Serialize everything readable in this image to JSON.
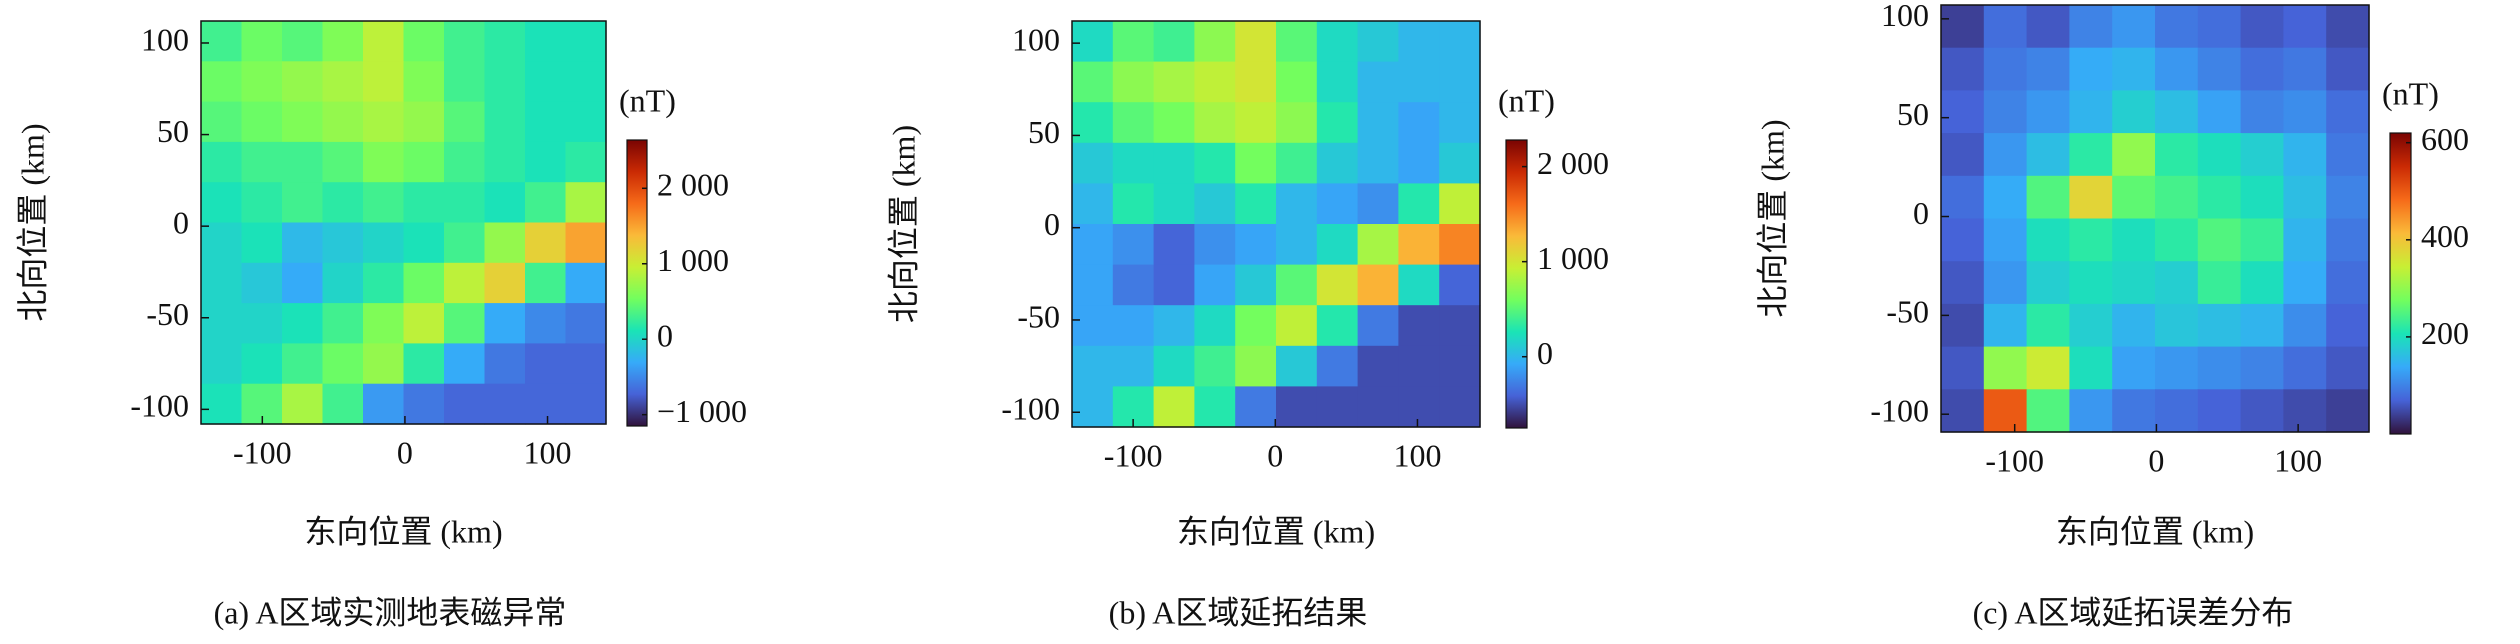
{
  "chart_data": [
    {
      "type": "heatmap",
      "title": "(a) A区域实测地表磁异常",
      "xlabel": "东向位置 (km)",
      "ylabel": "北向位置 (km)",
      "xlim": [
        -143,
        141
      ],
      "ylim": [
        -108,
        112
      ],
      "xticks": [
        -100,
        0,
        100
      ],
      "yticks": [
        -100,
        -50,
        0,
        50,
        100
      ],
      "colormap": [
        "#30123b",
        "#4662d7",
        "#36aaf9",
        "#1ae4b6",
        "#72fe5e",
        "#c8ef34",
        "#faba39",
        "#f66b19",
        "#ca2a04",
        "#7a0403"
      ],
      "colorbar_label": "(nT)",
      "clim": [
        -1150,
        2640
      ],
      "cticks": [
        {
          "value": -1000,
          "label": "−1 000"
        },
        0,
        {
          "value": 1000,
          "label": "1 000"
        },
        {
          "value": 2000,
          "label": "2 000"
        }
      ],
      "z": [
        [
          300,
          500,
          400,
          600,
          900,
          500,
          300,
          200,
          100,
          100
        ],
        [
          500,
          600,
          700,
          800,
          900,
          600,
          300,
          200,
          100,
          100
        ],
        [
          400,
          500,
          600,
          700,
          800,
          700,
          400,
          200,
          100,
          100
        ],
        [
          200,
          300,
          300,
          400,
          600,
          500,
          300,
          200,
          100,
          200
        ],
        [
          100,
          200,
          300,
          200,
          300,
          200,
          200,
          100,
          300,
          800
        ],
        [
          0,
          100,
          -200,
          -100,
          0,
          100,
          300,
          700,
          1200,
          1500
        ],
        [
          0,
          -100,
          -300,
          0,
          200,
          500,
          900,
          1200,
          300,
          -300
        ],
        [
          0,
          0,
          100,
          300,
          600,
          900,
          400,
          -300,
          -500,
          -600
        ],
        [
          0,
          100,
          300,
          500,
          700,
          200,
          -300,
          -600,
          -700,
          -700
        ],
        [
          100,
          400,
          800,
          300,
          -400,
          -600,
          -700,
          -700,
          -700,
          -700
        ]
      ]
    },
    {
      "type": "heatmap",
      "title": "(b) A区域延拓结果",
      "xlabel": "东向位置 (km)",
      "ylabel": "北向位置 (km)",
      "xlim": [
        -143,
        144
      ],
      "ylim": [
        -108,
        112
      ],
      "xticks": [
        -100,
        0,
        100
      ],
      "yticks": [
        -100,
        -50,
        0,
        50,
        100
      ],
      "colormap": [
        "#30123b",
        "#4662d7",
        "#36aaf9",
        "#1ae4b6",
        "#72fe5e",
        "#c8ef34",
        "#faba39",
        "#f66b19",
        "#ca2a04",
        "#7a0403"
      ],
      "colorbar_label": "(nT)",
      "clim": [
        -750,
        2280
      ],
      "cticks": [
        0,
        {
          "value": 1000,
          "label": "1 000"
        },
        {
          "value": 2000,
          "label": "2 000"
        }
      ],
      "z": [
        [
          200,
          500,
          400,
          700,
          1000,
          500,
          200,
          100,
          0,
          0
        ],
        [
          500,
          700,
          800,
          900,
          1000,
          600,
          200,
          0,
          0,
          0
        ],
        [
          300,
          500,
          600,
          800,
          900,
          700,
          300,
          0,
          -100,
          0
        ],
        [
          100,
          200,
          200,
          300,
          600,
          400,
          100,
          0,
          -100,
          100
        ],
        [
          0,
          300,
          200,
          100,
          300,
          0,
          -100,
          -200,
          300,
          900
        ],
        [
          -100,
          -200,
          -400,
          -200,
          -100,
          0,
          200,
          800,
          1300,
          1500
        ],
        [
          -100,
          -300,
          -400,
          -100,
          100,
          500,
          1000,
          1300,
          200,
          -400
        ],
        [
          -100,
          -100,
          0,
          200,
          600,
          900,
          300,
          -300,
          -500,
          -500
        ],
        [
          0,
          0,
          200,
          400,
          700,
          100,
          -300,
          -500,
          -500,
          -500
        ],
        [
          0,
          300,
          900,
          300,
          -300,
          -500,
          -500,
          -500,
          -500,
          -500
        ]
      ]
    },
    {
      "type": "heatmap",
      "title": "(c) A区域延拓误差分布",
      "xlabel": "东向位置 (km)",
      "ylabel": "北向位置 (km)",
      "xlim": [
        -152,
        150
      ],
      "ylim": [
        -109,
        107
      ],
      "xticks": [
        -100,
        0,
        100
      ],
      "yticks": [
        -100,
        -50,
        0,
        50,
        100
      ],
      "colormap": [
        "#30123b",
        "#4662d7",
        "#36aaf9",
        "#1ae4b6",
        "#72fe5e",
        "#c8ef34",
        "#faba39",
        "#f66b19",
        "#ca2a04",
        "#7a0403"
      ],
      "colorbar_label": "(nT)",
      "clim": [
        0,
        620
      ],
      "cticks": [
        200,
        400,
        600
      ],
      "z": [
        [
          40,
          80,
          60,
          100,
          120,
          90,
          80,
          60,
          70,
          50
        ],
        [
          60,
          90,
          100,
          140,
          150,
          120,
          100,
          80,
          90,
          60
        ],
        [
          70,
          100,
          120,
          150,
          180,
          160,
          130,
          100,
          110,
          80
        ],
        [
          60,
          120,
          160,
          220,
          300,
          220,
          200,
          180,
          150,
          90
        ],
        [
          80,
          140,
          250,
          380,
          260,
          240,
          220,
          200,
          160,
          100
        ],
        [
          70,
          130,
          200,
          220,
          200,
          220,
          250,
          230,
          150,
          90
        ],
        [
          60,
          120,
          180,
          200,
          190,
          180,
          230,
          200,
          140,
          80
        ],
        [
          50,
          150,
          220,
          180,
          150,
          170,
          160,
          150,
          110,
          70
        ],
        [
          60,
          300,
          350,
          200,
          130,
          120,
          110,
          100,
          80,
          60
        ],
        [
          50,
          500,
          250,
          120,
          90,
          80,
          70,
          60,
          50,
          40
        ]
      ]
    }
  ]
}
